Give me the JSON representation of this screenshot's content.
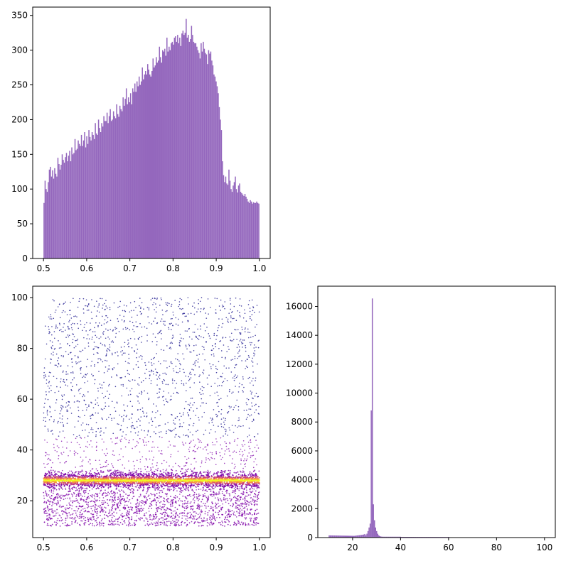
{
  "chart_data": [
    {
      "id": "top-left",
      "type": "bar",
      "subtype": "histogram",
      "title": "",
      "xlabel": "",
      "ylabel": "",
      "xlim": [
        0.475,
        1.025
      ],
      "ylim": [
        0,
        362
      ],
      "x_ticks": [
        "0.5",
        "0.6",
        "0.7",
        "0.8",
        "0.9",
        "1.0"
      ],
      "y_ticks": [
        "0",
        "50",
        "100",
        "150",
        "200",
        "250",
        "300",
        "350"
      ],
      "bar_color": "#9467bd",
      "bin_range": [
        0.5,
        1.0
      ],
      "bin_count": 200,
      "values": [
        80,
        112,
        100,
        96,
        110,
        128,
        132,
        118,
        127,
        115,
        130,
        122,
        118,
        145,
        136,
        128,
        135,
        150,
        142,
        138,
        146,
        152,
        140,
        148,
        155,
        140,
        160,
        150,
        152,
        172,
        156,
        158,
        170,
        165,
        162,
        178,
        162,
        170,
        182,
        160,
        176,
        165,
        185,
        175,
        170,
        182,
        178,
        172,
        195,
        180,
        178,
        200,
        188,
        182,
        195,
        190,
        205,
        198,
        198,
        210,
        195,
        205,
        215,
        198,
        200,
        212,
        205,
        202,
        222,
        208,
        204,
        220,
        215,
        212,
        232,
        220,
        230,
        245,
        222,
        232,
        225,
        238,
        222,
        245,
        240,
        252,
        240,
        255,
        248,
        262,
        250,
        255,
        275,
        258,
        265,
        270,
        265,
        280,
        272,
        265,
        262,
        270,
        288,
        275,
        278,
        290,
        282,
        285,
        305,
        290,
        282,
        300,
        298,
        302,
        292,
        318,
        298,
        305,
        300,
        310,
        312,
        308,
        318,
        320,
        312,
        322,
        310,
        318,
        306,
        324,
        328,
        322,
        325,
        345,
        318,
        322,
        312,
        316,
        335,
        322,
        312,
        310,
        310,
        305,
        300,
        296,
        288,
        310,
        298,
        312,
        302,
        296,
        294,
        280,
        300,
        295,
        298,
        285,
        278,
        265,
        262,
        255,
        248,
        238,
        218,
        200,
        185,
        140,
        120,
        110,
        118,
        108,
        106,
        128,
        112,
        100,
        96,
        105,
        110,
        118,
        100,
        95,
        105,
        108,
        96,
        94,
        92,
        90,
        93,
        89,
        86,
        82,
        80,
        84,
        82,
        79,
        81,
        80,
        80,
        82,
        80,
        79
      ]
    },
    {
      "id": "bottom-left",
      "type": "scatter",
      "title": "",
      "xlabel": "",
      "ylabel": "",
      "xlim": [
        0.475,
        1.025
      ],
      "ylim": [
        5.5,
        104.5
      ],
      "x_ticks": [
        "0.5",
        "0.6",
        "0.7",
        "0.8",
        "0.9",
        "1.0"
      ],
      "y_ticks": [
        "20",
        "40",
        "60",
        "80",
        "100"
      ],
      "x_range": [
        0.5,
        1.0
      ],
      "y_range": [
        10,
        100
      ],
      "dense_band_center": 28,
      "colormap": [
        "#0d0887",
        "#7e03a8",
        "#cc4778",
        "#f89540",
        "#f0f921"
      ],
      "density_note": "points concentrated around y = 28, sparse uniform background from 10 to 100"
    },
    {
      "id": "bottom-right",
      "type": "bar",
      "subtype": "histogram",
      "title": "",
      "xlabel": "",
      "ylabel": "",
      "xlim": [
        5.5,
        104.5
      ],
      "ylim": [
        0,
        17400
      ],
      "x_ticks": [
        "20",
        "40",
        "60",
        "80",
        "100"
      ],
      "y_ticks": [
        "0",
        "2000",
        "4000",
        "6000",
        "8000",
        "10000",
        "12000",
        "14000",
        "16000"
      ],
      "bar_color": "#9467bd",
      "peak_x": 28,
      "peak_value": 16550,
      "second_peak_x": 27.5,
      "second_peak_value": 8800,
      "baseline_low_range": [
        10,
        20
      ],
      "baseline_low_value": 150
    }
  ]
}
